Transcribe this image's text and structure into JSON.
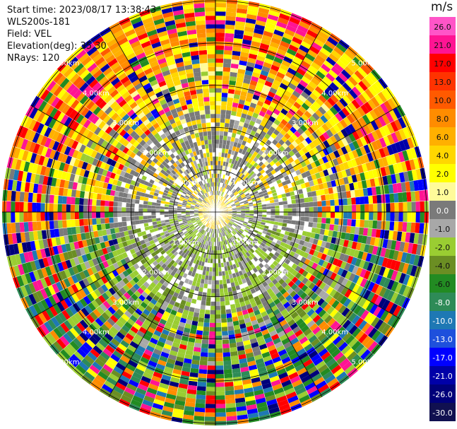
{
  "header": {
    "start_time": "Start time: 2023/08/17 13:38:43",
    "instrument": "WLS200s-181",
    "field": "Field: VEL",
    "elevation": "Elevation(deg): 35.30",
    "nrays": "NRays: 120"
  },
  "colorbar": {
    "unit": "m/s",
    "ticks": [
      "26.0",
      "21.0",
      "17.0",
      "13.0",
      "10.0",
      "8.0",
      "6.0",
      "4.0",
      "2.0",
      "1.0",
      "0.0",
      "-1.0",
      "-2.0",
      "-4.0",
      "-6.0",
      "-8.0",
      "-10.0",
      "-13.0",
      "-17.0",
      "-21.0",
      "-26.0",
      "-30.0"
    ],
    "colors": [
      "#ff55c8",
      "#ff1493",
      "#ff0000",
      "#ff3300",
      "#ff5a00",
      "#ff8c00",
      "#ffb000",
      "#ffd700",
      "#ffff00",
      "#fffb9a",
      "#7a7a7a",
      "#a8a8a8",
      "#9acd32",
      "#6b8e23",
      "#228b22",
      "#2e8b57",
      "#1e78b4",
      "#1e50dc",
      "#0000ff",
      "#0000a8",
      "#00007a",
      "#101050"
    ]
  },
  "chart_data": {
    "type": "ppi",
    "title": "",
    "field": "VEL",
    "elevation_deg": 35.3,
    "nrays": 120,
    "range_rings": [
      "1.00km",
      "2.00km",
      "3.00km",
      "4.00km",
      "5.00km"
    ],
    "ring_label_suffix": "km",
    "ring_ranges_km": [
      1.0,
      2.0,
      3.0,
      4.0,
      5.0
    ],
    "max_range_km": 5.05,
    "velocity_range": [
      -30.0,
      30.0
    ]
  }
}
